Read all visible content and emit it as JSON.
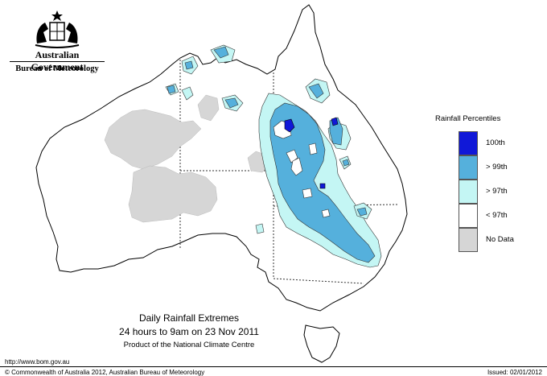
{
  "header": {
    "org_title": "Australian Government",
    "org_subtitle": "Bureau of Meteorology"
  },
  "legend": {
    "title": "Rainfall Percentiles",
    "items": [
      {
        "label": "100th",
        "color": "#1018d8"
      },
      {
        "label": "> 99th",
        "color": "#55b0dc"
      },
      {
        "label": "> 97th",
        "color": "#c4f6f4"
      },
      {
        "label": "< 97th",
        "color": "#ffffff"
      },
      {
        "label": "No Data",
        "color": "#d6d6d6"
      }
    ]
  },
  "caption": {
    "line1": "Daily Rainfall Extremes",
    "line2": "24 hours to 9am on 23 Nov 2011",
    "line3": "Product of the National Climate Centre"
  },
  "footer": {
    "url": "http://www.bom.gov.au",
    "copyright": "© Commonwealth of Australia 2012, Australian Bureau of Meteorology",
    "issued": "Issued: 02/01/2012"
  },
  "map": {
    "region": "Australia",
    "colors": {
      "coast": "#000000",
      "no_data": "#d6d6d6",
      "above_97": "#c4f6f4",
      "above_99": "#55b0dc",
      "p100": "#1018d8"
    }
  }
}
